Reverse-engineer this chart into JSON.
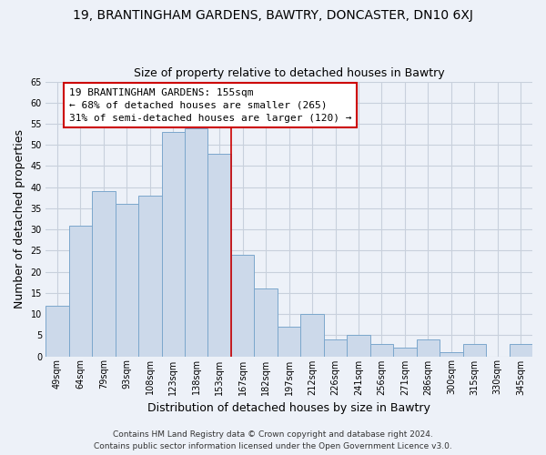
{
  "title": "19, BRANTINGHAM GARDENS, BAWTRY, DONCASTER, DN10 6XJ",
  "subtitle": "Size of property relative to detached houses in Bawtry",
  "xlabel": "Distribution of detached houses by size in Bawtry",
  "ylabel": "Number of detached properties",
  "categories": [
    "49sqm",
    "64sqm",
    "79sqm",
    "93sqm",
    "108sqm",
    "123sqm",
    "138sqm",
    "153sqm",
    "167sqm",
    "182sqm",
    "197sqm",
    "212sqm",
    "226sqm",
    "241sqm",
    "256sqm",
    "271sqm",
    "286sqm",
    "300sqm",
    "315sqm",
    "330sqm",
    "345sqm"
  ],
  "values": [
    12,
    31,
    39,
    36,
    38,
    53,
    54,
    48,
    24,
    16,
    7,
    10,
    4,
    5,
    3,
    2,
    4,
    1,
    3,
    0,
    3
  ],
  "bar_color": "#ccd9ea",
  "bar_edge_color": "#7ba7cc",
  "highlight_bar_index": 7,
  "highlight_line_color": "#cc0000",
  "ylim": [
    0,
    65
  ],
  "yticks": [
    0,
    5,
    10,
    15,
    20,
    25,
    30,
    35,
    40,
    45,
    50,
    55,
    60,
    65
  ],
  "annotation_line1": "19 BRANTINGHAM GARDENS: 155sqm",
  "annotation_line2": "← 68% of detached houses are smaller (265)",
  "annotation_line3": "31% of semi-detached houses are larger (120) →",
  "annotation_box_edge": "#cc0000",
  "footnote1": "Contains HM Land Registry data © Crown copyright and database right 2024.",
  "footnote2": "Contains public sector information licensed under the Open Government Licence v3.0.",
  "background_color": "#edf1f8",
  "grid_color": "#c8d0dc",
  "title_fontsize": 10,
  "subtitle_fontsize": 9,
  "axis_label_fontsize": 9,
  "tick_fontsize": 7,
  "annotation_fontsize": 8,
  "footnote_fontsize": 6.5
}
